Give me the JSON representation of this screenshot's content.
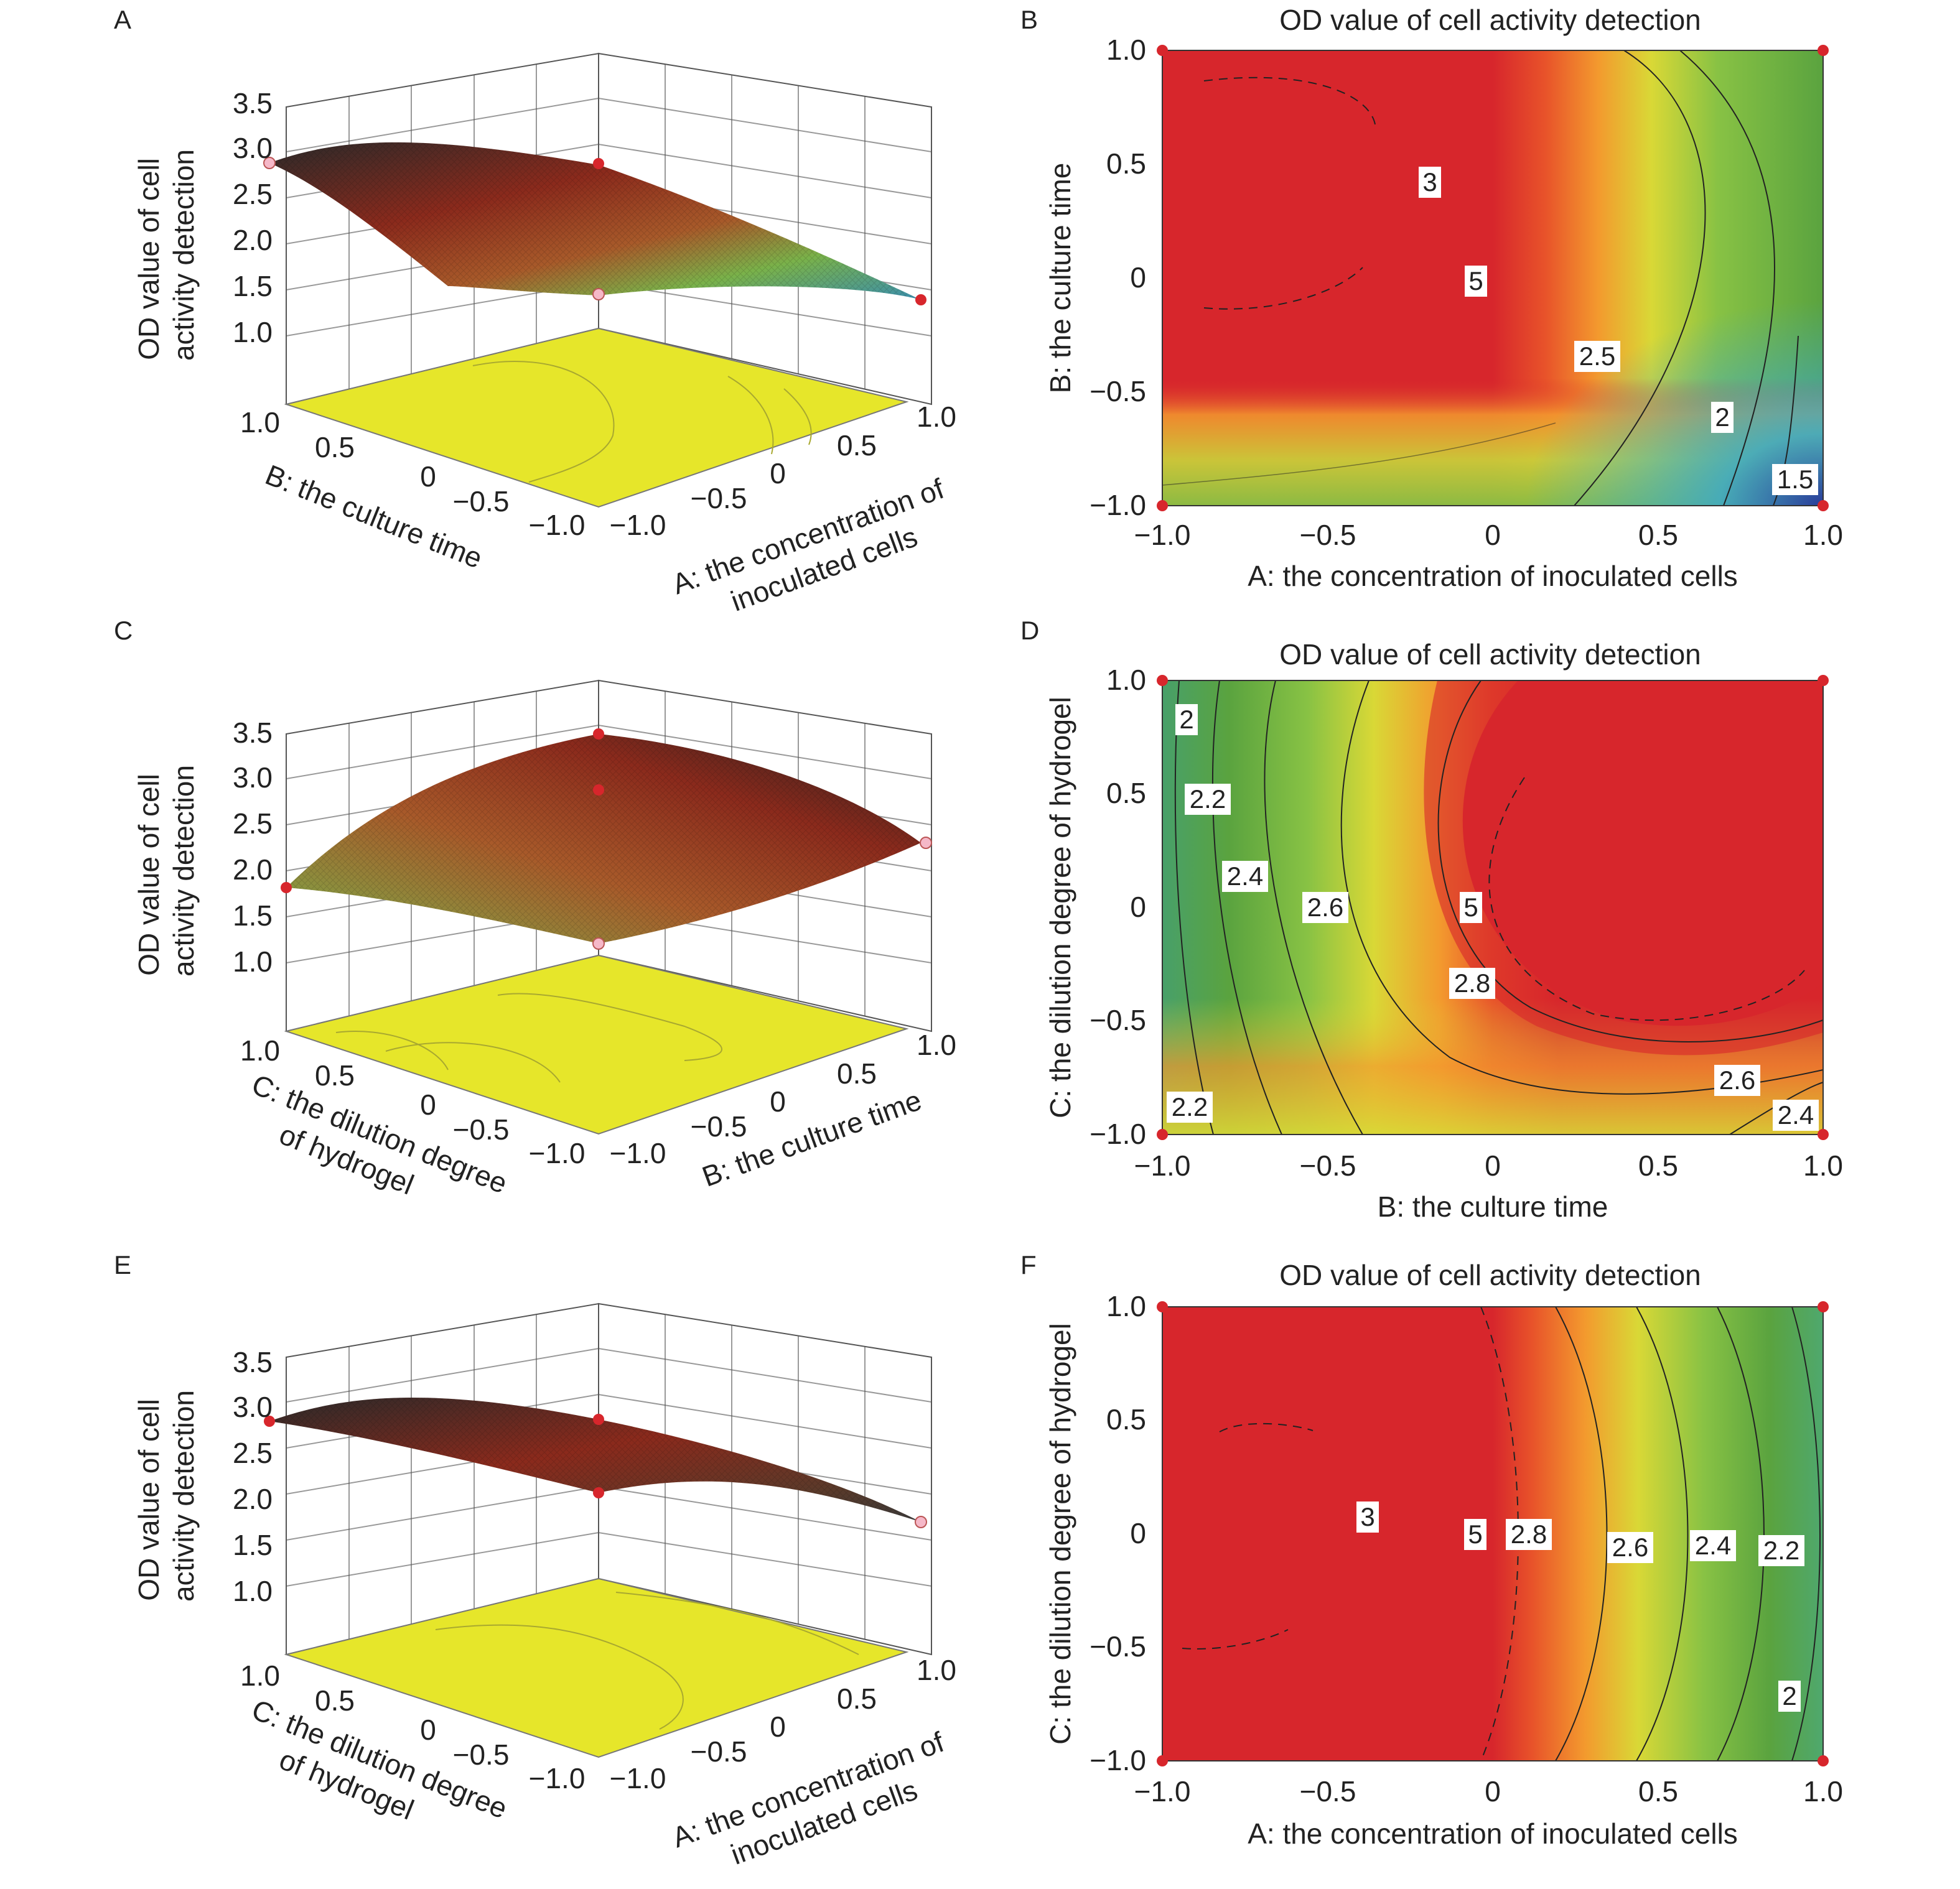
{
  "chart_data": [
    {
      "panel": "A",
      "type": "surface",
      "zlabel": "OD value of cell activity detection",
      "xlabel": "A: the concentration of inoculated cells",
      "ylabel": "B: the culture time",
      "x_ticks": [
        "−1.0",
        "−0.5",
        "0",
        "0.5",
        "1.0"
      ],
      "y_ticks": [
        "1.0",
        "0.5",
        "0",
        "−0.5",
        "−1.0"
      ],
      "z_ticks": [
        "1.0",
        "1.5",
        "2.0",
        "2.5",
        "3.0",
        "3.5"
      ],
      "xlim": [
        -1,
        1
      ],
      "ylim": [
        -1,
        1
      ],
      "zlim": [
        1.0,
        3.5
      ],
      "colors": [
        "#2a3b8f",
        "#3fa9c4",
        "#7ac143",
        "#c9d63a",
        "#8b2a1c",
        "#1a1a1a"
      ],
      "floor_color": "#e6e62a",
      "design_points": [
        {
          "x": -1,
          "y": 1,
          "z": 2.85
        },
        {
          "x": 1,
          "y": 1,
          "z": 2.55
        },
        {
          "x": -1,
          "y": -1,
          "z": 2.0
        },
        {
          "x": 1,
          "y": -1,
          "z": 1.5
        }
      ]
    },
    {
      "panel": "B",
      "type": "contour",
      "title": "OD value of cell activity detection",
      "xlabel": "A: the concentration of inoculated cells",
      "ylabel": "B: the culture time",
      "x_ticks": [
        "−1.0",
        "−0.5",
        "0",
        "0.5",
        "1.0"
      ],
      "y_ticks": [
        "−1.0",
        "−0.5",
        "0",
        "0.5",
        "1.0"
      ],
      "xlim": [
        -1,
        1
      ],
      "ylim": [
        -1,
        1
      ],
      "contour_labels": [
        {
          "text": "3",
          "x": -0.2,
          "y": 0.42
        },
        {
          "text": "5",
          "x": -0.05,
          "y": 0.0
        },
        {
          "text": "2.5",
          "x": 0.32,
          "y": -0.34
        },
        {
          "text": "2",
          "x": 0.7,
          "y": -0.6
        },
        {
          "text": "1.5",
          "x": 0.9,
          "y": -0.9
        }
      ]
    },
    {
      "panel": "C",
      "type": "surface",
      "zlabel": "OD value of cell activity detection",
      "xlabel": "B: the culture time",
      "ylabel": "C: the dilution degree of hydrogel",
      "x_ticks": [
        "−1.0",
        "−0.5",
        "0",
        "0.5",
        "1.0"
      ],
      "y_ticks": [
        "1.0",
        "0.5",
        "0",
        "−0.5",
        "−1.0"
      ],
      "z_ticks": [
        "1.0",
        "1.5",
        "2.0",
        "2.5",
        "3.0",
        "3.5"
      ],
      "xlim": [
        -1,
        1
      ],
      "ylim": [
        -1,
        1
      ],
      "zlim": [
        1.0,
        3.5
      ],
      "colors": [
        "#2a3b8f",
        "#3fa9c4",
        "#7ac143",
        "#c9d63a",
        "#8b2a1c",
        "#1a1a1a"
      ],
      "floor_color": "#e6e62a",
      "design_points": [
        {
          "x": -1,
          "y": 1,
          "z": 1.85
        },
        {
          "x": 1,
          "y": 1,
          "z": 3.45
        },
        {
          "x": -1,
          "y": -1,
          "z": 1.7
        },
        {
          "x": 1,
          "y": -1,
          "z": 2.5
        }
      ]
    },
    {
      "panel": "D",
      "type": "contour",
      "title": "OD value of cell activity detection",
      "xlabel": "B: the culture time",
      "ylabel": "C: the dilution degree of hydrogel",
      "x_ticks": [
        "−1.0",
        "−0.5",
        "0",
        "0.5",
        "1.0"
      ],
      "y_ticks": [
        "−1.0",
        "−0.5",
        "0",
        "0.5",
        "1.0"
      ],
      "xlim": [
        -1,
        1
      ],
      "ylim": [
        -1,
        1
      ],
      "contour_labels": [
        {
          "text": "2",
          "x": -0.93,
          "y": 0.84
        },
        {
          "text": "2.2",
          "x": -0.87,
          "y": 0.48
        },
        {
          "text": "2.4",
          "x": -0.75,
          "y": 0.14
        },
        {
          "text": "2.6",
          "x": -0.51,
          "y": 0.0
        },
        {
          "text": "5",
          "x": -0.07,
          "y": 0.0
        },
        {
          "text": "2.8",
          "x": -0.06,
          "y": -0.33
        },
        {
          "text": "2.6",
          "x": 0.74,
          "y": -0.75
        },
        {
          "text": "2.4",
          "x": 0.92,
          "y": -0.91
        },
        {
          "text": "2.2",
          "x": -0.93,
          "y": -0.87
        }
      ]
    },
    {
      "panel": "E",
      "type": "surface",
      "zlabel": "OD value of cell activity detection",
      "xlabel": "A: the concentration of inoculated cells",
      "ylabel": "C: the dilution degree of hydrogel",
      "x_ticks": [
        "−1.0",
        "−0.5",
        "0",
        "0.5",
        "1.0"
      ],
      "y_ticks": [
        "1.0",
        "0.5",
        "0",
        "−0.5",
        "−1.0"
      ],
      "z_ticks": [
        "1.0",
        "1.5",
        "2.0",
        "2.5",
        "3.0",
        "3.5"
      ],
      "xlim": [
        -1,
        1
      ],
      "ylim": [
        -1,
        1
      ],
      "zlim": [
        1.0,
        3.5
      ],
      "colors": [
        "#2a3b8f",
        "#3fa9c4",
        "#7ac143",
        "#c9d63a",
        "#8b2a1c",
        "#1a1a1a"
      ],
      "floor_color": "#e6e62a",
      "design_points": [
        {
          "x": -1,
          "y": 1,
          "z": 2.85
        },
        {
          "x": 1,
          "y": 1,
          "z": 2.5
        },
        {
          "x": -1,
          "y": -1,
          "z": 2.5
        },
        {
          "x": 1,
          "y": -1,
          "z": 1.5
        }
      ]
    },
    {
      "panel": "F",
      "type": "contour",
      "title": "OD value of cell activity detection",
      "xlabel": "A: the concentration of inoculated cells",
      "ylabel": "C: the dilution degree of hydrogel",
      "x_ticks": [
        "−1.0",
        "−0.5",
        "0",
        "0.5",
        "1.0"
      ],
      "y_ticks": [
        "−1.0",
        "−0.5",
        "0",
        "0.5",
        "1.0"
      ],
      "xlim": [
        -1,
        1
      ],
      "ylim": [
        -1,
        1
      ],
      "contour_labels": [
        {
          "text": "3",
          "x": -0.38,
          "y": 0.07
        },
        {
          "text": "5",
          "x": -0.05,
          "y": 0.0
        },
        {
          "text": "2.8",
          "x": 0.11,
          "y": 0.0
        },
        {
          "text": "2.6",
          "x": 0.42,
          "y": -0.06
        },
        {
          "text": "2.4",
          "x": 0.67,
          "y": -0.06
        },
        {
          "text": "2.2",
          "x": 0.88,
          "y": -0.08
        },
        {
          "text": "2",
          "x": 0.89,
          "y": -0.71
        }
      ]
    }
  ]
}
